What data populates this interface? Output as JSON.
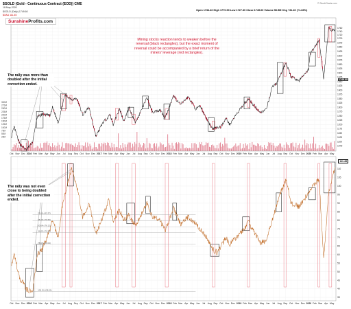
{
  "header": {
    "symbol_line": "$GOLD (Gold - Continuous Contract (EOD)) CME",
    "date": "18-May-2020",
    "legend_main": "$GOLD (Daily) 1749.60",
    "legend_xau": "$XAU 111.45",
    "ohlc": "Open 1734.40  High 1770.90  Low 1727.30  Close 1749.60  Volume 56.5M  Chg +31.40 (+1.83%)",
    "watermark": "© StockCharts.com"
  },
  "logo": {
    "part1": "Sunshine",
    "part2": "Profits.com"
  },
  "annotations": {
    "top_red": "Mining stocks reaction tends to weaken before the reversal (black rectangles), but the exact moment of reversal could be accompanied by a brief return of the miners' leverage (red rectangles).",
    "top_black": "The rally was more than doubled after the initial correction ended.",
    "bottom_black": "The rally was not even close to being doubled after the initial correction ended."
  },
  "price_labels": {
    "gold_last": "1749.60",
    "xau_last": "111.45"
  },
  "colors": {
    "gold_line": "#1a1a1a",
    "gold_candle_up": "#000000",
    "gold_candle_down": "#c8102e",
    "xau_line": "#c06a24",
    "volume": "#c8102e",
    "black_rect": "#000000",
    "red_rect": "#e04050"
  },
  "chart_data": [
    {
      "type": "line",
      "series": [
        {
          "name": "$GOLD (Daily) 1749.60"
        }
      ],
      "x_tick_labels": [
        "Oct",
        "Nov",
        "Dec",
        "2016",
        "Feb",
        "Mar",
        "Apr",
        "May",
        "Jun",
        "Jul",
        "Aug",
        "Sep",
        "Oct",
        "Nov",
        "Dec",
        "2017",
        "Feb",
        "Mar",
        "Apr",
        "May",
        "Jun",
        "Jul",
        "Aug",
        "Sep",
        "Oct",
        "Nov",
        "Dec",
        "2018",
        "Feb",
        "Mar",
        "Apr",
        "May",
        "Jun",
        "Jul",
        "Aug",
        "Sep",
        "Oct",
        "Nov",
        "Dec",
        "2019",
        "Feb",
        "Mar",
        "Apr",
        "May",
        "Jun",
        "Jul",
        "Aug",
        "Sep",
        "Oct",
        "Nov",
        "Dec",
        "2020",
        "Feb",
        "Mar",
        "Apr",
        "May"
      ],
      "y_ticks_right": [
        "1760",
        "1740",
        "1720",
        "1700",
        "1675",
        "1650",
        "1625",
        "1600",
        "1575",
        "1550",
        "1525",
        "1500",
        "1475",
        "1450",
        "1425",
        "1400",
        "1375",
        "1350",
        "1325",
        "1300",
        "1275",
        "1250",
        "1225",
        "1200",
        "1175",
        "1150",
        "1125",
        "1100",
        "1075",
        "1050"
      ],
      "y_ticks_left": [
        "300M",
        "275M",
        "250M",
        "225M",
        "200M",
        "175M",
        "150M",
        "125M",
        "100M",
        "75M",
        "50M",
        "25M"
      ],
      "points": [
        [
          "2015-10-01",
          1130
        ],
        [
          "2015-10-15",
          1185
        ],
        [
          "2015-11-10",
          1090
        ],
        [
          "2015-12-17",
          1050
        ],
        [
          "2016-01-20",
          1100
        ],
        [
          "2016-02-11",
          1240
        ],
        [
          "2016-03-10",
          1260
        ],
        [
          "2016-04-20",
          1250
        ],
        [
          "2016-05-02",
          1300
        ],
        [
          "2016-06-01",
          1210
        ],
        [
          "2016-06-24",
          1320
        ],
        [
          "2016-07-06",
          1370
        ],
        [
          "2016-08-15",
          1345
        ],
        [
          "2016-09-06",
          1350
        ],
        [
          "2016-10-07",
          1255
        ],
        [
          "2016-11-08",
          1300
        ],
        [
          "2016-12-15",
          1130
        ],
        [
          "2017-01-20",
          1210
        ],
        [
          "2017-02-27",
          1255
        ],
        [
          "2017-03-15",
          1200
        ],
        [
          "2017-04-17",
          1290
        ],
        [
          "2017-05-09",
          1220
        ],
        [
          "2017-06-06",
          1295
        ],
        [
          "2017-07-10",
          1210
        ],
        [
          "2017-09-08",
          1355
        ],
        [
          "2017-10-06",
          1270
        ],
        [
          "2017-11-15",
          1285
        ],
        [
          "2017-12-12",
          1240
        ],
        [
          "2018-01-25",
          1365
        ],
        [
          "2018-03-01",
          1315
        ],
        [
          "2018-04-11",
          1360
        ],
        [
          "2018-05-21",
          1290
        ],
        [
          "2018-06-14",
          1305
        ],
        [
          "2018-07-19",
          1225
        ],
        [
          "2018-08-16",
          1175
        ],
        [
          "2018-09-28",
          1185
        ],
        [
          "2018-10-26",
          1235
        ],
        [
          "2018-11-13",
          1200
        ],
        [
          "2019-01-31",
          1325
        ],
        [
          "2019-02-20",
          1345
        ],
        [
          "2019-04-23",
          1270
        ],
        [
          "2019-05-24",
          1285
        ],
        [
          "2019-06-25",
          1420
        ],
        [
          "2019-07-19",
          1440
        ],
        [
          "2019-09-04",
          1560
        ],
        [
          "2019-10-01",
          1475
        ],
        [
          "2019-11-12",
          1455
        ],
        [
          "2019-12-31",
          1520
        ],
        [
          "2020-01-08",
          1610
        ],
        [
          "2020-02-24",
          1690
        ],
        [
          "2020-03-19",
          1470
        ],
        [
          "2020-04-14",
          1760
        ],
        [
          "2020-04-23",
          1750
        ],
        [
          "2020-05-18",
          1750
        ]
      ]
    },
    {
      "type": "line",
      "series": [
        {
          "name": "$XAU 111.45"
        }
      ],
      "x_tick_labels": [
        "Oct",
        "Nov",
        "Dec",
        "2016",
        "Feb",
        "Mar",
        "Apr",
        "May",
        "Jun",
        "Jul",
        "Aug",
        "Sep",
        "Oct",
        "Nov",
        "Dec",
        "2017",
        "Feb",
        "Mar",
        "Apr",
        "May",
        "Jun",
        "Jul",
        "Aug",
        "Sep",
        "Oct",
        "Nov",
        "Dec",
        "2018",
        "Feb",
        "Mar",
        "Apr",
        "May",
        "Jun",
        "Jul",
        "Aug",
        "Sep",
        "Oct",
        "Nov",
        "Dec",
        "2019",
        "Feb",
        "Mar",
        "Apr",
        "May",
        "Jun",
        "Jul",
        "Aug",
        "Sep",
        "Oct",
        "Nov",
        "Dec",
        "2020",
        "Feb",
        "Mar",
        "Apr",
        "May"
      ],
      "y_ticks_right": [
        "110",
        "105",
        "100",
        "95",
        "90",
        "85",
        "80",
        "75",
        "70",
        "65",
        "60",
        "55",
        "50",
        "45",
        "40",
        "35"
      ],
      "fib_labels": [
        "23.6% (83.37)",
        "38.2% (79.65)",
        "50.0% (76.12)",
        "61.8% (72.98)",
        "78.6% (66.04)",
        "100.0% (38.41)"
      ],
      "points": [
        [
          "2015-10-01",
          55
        ],
        [
          "2015-10-15",
          60
        ],
        [
          "2015-11-10",
          47
        ],
        [
          "2015-12-17",
          40
        ],
        [
          "2016-01-19",
          38
        ],
        [
          "2016-02-11",
          60
        ],
        [
          "2016-03-10",
          63
        ],
        [
          "2016-04-20",
          75
        ],
        [
          "2016-05-02",
          80
        ],
        [
          "2016-06-01",
          70
        ],
        [
          "2016-06-24",
          90
        ],
        [
          "2016-08-11",
          111
        ],
        [
          "2016-09-06",
          100
        ],
        [
          "2016-10-07",
          82
        ],
        [
          "2016-11-08",
          90
        ],
        [
          "2016-12-15",
          72
        ],
        [
          "2017-01-20",
          82
        ],
        [
          "2017-02-20",
          92
        ],
        [
          "2017-03-15",
          80
        ],
        [
          "2017-04-17",
          86
        ],
        [
          "2017-05-09",
          80
        ],
        [
          "2017-06-06",
          83
        ],
        [
          "2017-07-10",
          77
        ],
        [
          "2017-09-08",
          90
        ],
        [
          "2017-10-06",
          82
        ],
        [
          "2017-11-15",
          80
        ],
        [
          "2017-12-12",
          74
        ],
        [
          "2018-01-25",
          87
        ],
        [
          "2018-03-01",
          78
        ],
        [
          "2018-04-11",
          82
        ],
        [
          "2018-05-21",
          78
        ],
        [
          "2018-07-19",
          70
        ],
        [
          "2018-08-16",
          63
        ],
        [
          "2018-09-11",
          61
        ],
        [
          "2018-10-26",
          70
        ],
        [
          "2018-11-13",
          66
        ],
        [
          "2019-01-31",
          75
        ],
        [
          "2019-02-20",
          79
        ],
        [
          "2019-04-23",
          67
        ],
        [
          "2019-05-24",
          68
        ],
        [
          "2019-06-25",
          80
        ],
        [
          "2019-07-19",
          90
        ],
        [
          "2019-09-04",
          104
        ],
        [
          "2019-10-01",
          90
        ],
        [
          "2019-11-12",
          88
        ],
        [
          "2019-12-31",
          96
        ],
        [
          "2020-01-08",
          98
        ],
        [
          "2020-02-24",
          104
        ],
        [
          "2020-03-19",
          58
        ],
        [
          "2020-04-14",
          96
        ],
        [
          "2020-05-18",
          111
        ]
      ]
    }
  ]
}
